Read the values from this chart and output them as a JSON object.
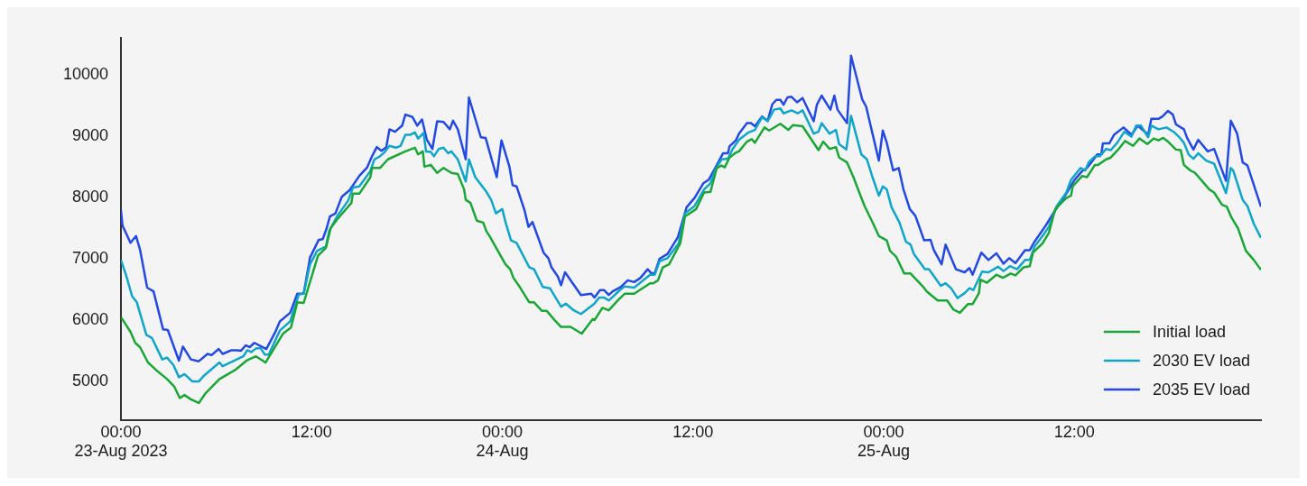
{
  "chart_data": {
    "type": "line",
    "xlim": [
      "2023-08-23T00:00",
      "2023-08-25T23:45"
    ],
    "xticks": [
      {
        "value": "2023-08-23T00:00",
        "label": "00:00\n23-Aug 2023"
      },
      {
        "value": "2023-08-23T12:00",
        "label": "12:00"
      },
      {
        "value": "2023-08-24T00:00",
        "label": "00:00\n24-Aug"
      },
      {
        "value": "2023-08-24T12:00",
        "label": "12:00"
      },
      {
        "value": "2023-08-25T00:00",
        "label": "00:00\n25-Aug"
      },
      {
        "value": "2023-08-25T12:00",
        "label": "12:00"
      }
    ],
    "ylim": [
      4370,
      10600
    ],
    "yticks": [
      5000,
      6000,
      7000,
      8000,
      9000,
      10000
    ],
    "grid": false,
    "legend": "bottom right",
    "marker": "none",
    "series": [
      {
        "name": "Initial load",
        "color": "#1aa637",
        "x": [
          "2023-08-23T00:00",
          "2023-08-23T00:36",
          "2023-08-23T00:54",
          "2023-08-23T01:12",
          "2023-08-23T01:42",
          "2023-08-23T02:12",
          "2023-08-23T02:54",
          "2023-08-23T03:21",
          "2023-08-23T03:42",
          "2023-08-23T04:00",
          "2023-08-23T04:24",
          "2023-08-23T04:54",
          "2023-08-23T05:18",
          "2023-08-23T06:12",
          "2023-08-23T07:12",
          "2023-08-23T07:54",
          "2023-08-23T08:30",
          "2023-08-23T09:06",
          "2023-08-23T10:12",
          "2023-08-23T10:42",
          "2023-08-23T11:06",
          "2023-08-23T11:30",
          "2023-08-23T12:24",
          "2023-08-23T12:54",
          "2023-08-23T13:12",
          "2023-08-23T13:36",
          "2023-08-23T14:30",
          "2023-08-23T14:36",
          "2023-08-23T15:00",
          "2023-08-23T15:42",
          "2023-08-23T15:48",
          "2023-08-23T16:18",
          "2023-08-23T16:48",
          "2023-08-23T17:54",
          "2023-08-23T18:30",
          "2023-08-23T18:42",
          "2023-08-23T19:00",
          "2023-08-23T19:06",
          "2023-08-23T19:30",
          "2023-08-23T19:54",
          "2023-08-23T20:18",
          "2023-08-23T20:48",
          "2023-08-23T21:12",
          "2023-08-23T21:36",
          "2023-08-23T21:42",
          "2023-08-23T22:00",
          "2023-08-23T22:24",
          "2023-08-23T22:48",
          "2023-08-23T23:00",
          "2023-08-23T23:12",
          "2023-08-24T00:12",
          "2023-08-24T00:30",
          "2023-08-24T00:42",
          "2023-08-24T01:06",
          "2023-08-24T01:42",
          "2023-08-24T02:00",
          "2023-08-24T02:30",
          "2023-08-24T02:48",
          "2023-08-24T03:18",
          "2023-08-24T03:42",
          "2023-08-24T04:18",
          "2023-08-24T05:00",
          "2023-08-24T05:42",
          "2023-08-24T05:48",
          "2023-08-24T06:18",
          "2023-08-24T06:42",
          "2023-08-24T07:18",
          "2023-08-24T07:42",
          "2023-08-24T08:18",
          "2023-08-24T09:18",
          "2023-08-24T09:30",
          "2023-08-24T09:48",
          "2023-08-24T10:06",
          "2023-08-24T10:30",
          "2023-08-24T11:12",
          "2023-08-24T11:30",
          "2023-08-24T12:12",
          "2023-08-24T12:42",
          "2023-08-24T13:06",
          "2023-08-24T13:30",
          "2023-08-24T13:48",
          "2023-08-24T14:00",
          "2023-08-24T14:18",
          "2023-08-24T14:42",
          "2023-08-24T14:54",
          "2023-08-24T15:24",
          "2023-08-24T15:42",
          "2023-08-24T15:54",
          "2023-08-24T16:30",
          "2023-08-24T16:48",
          "2023-08-24T17:30",
          "2023-08-24T18:00",
          "2023-08-24T18:18",
          "2023-08-24T18:54",
          "2023-08-24T19:54",
          "2023-08-24T20:12",
          "2023-08-24T20:36",
          "2023-08-24T21:00",
          "2023-08-24T21:12",
          "2023-08-24T21:42",
          "2023-08-24T22:06",
          "2023-08-24T22:48",
          "2023-08-24T23:21",
          "2023-08-24T23:42",
          "2023-08-25T00:12",
          "2023-08-25T00:24",
          "2023-08-25T00:48",
          "2023-08-25T01:18",
          "2023-08-25T01:42",
          "2023-08-25T02:30",
          "2023-08-25T02:42",
          "2023-08-25T03:24",
          "2023-08-25T04:00",
          "2023-08-25T04:24",
          "2023-08-25T04:48",
          "2023-08-25T05:18",
          "2023-08-25T05:36",
          "2023-08-25T06:00",
          "2023-08-25T06:06",
          "2023-08-25T06:30",
          "2023-08-25T07:06",
          "2023-08-25T07:30",
          "2023-08-25T08:00",
          "2023-08-25T08:18",
          "2023-08-25T08:48",
          "2023-08-25T09:12",
          "2023-08-25T09:24",
          "2023-08-25T10:00",
          "2023-08-25T10:24",
          "2023-08-25T10:48",
          "2023-08-25T11:30",
          "2023-08-25T11:48",
          "2023-08-25T11:54",
          "2023-08-25T12:30",
          "2023-08-25T12:48",
          "2023-08-25T13:18",
          "2023-08-25T13:30",
          "2023-08-25T14:00",
          "2023-08-25T14:18",
          "2023-08-25T14:48",
          "2023-08-25T15:12",
          "2023-08-25T15:42",
          "2023-08-25T16:06",
          "2023-08-25T16:36",
          "2023-08-25T17:00",
          "2023-08-25T17:18",
          "2023-08-25T17:36",
          "2023-08-25T17:54",
          "2023-08-25T18:24",
          "2023-08-25T18:42",
          "2023-08-25T18:54",
          "2023-08-25T19:18",
          "2023-08-25T19:36",
          "2023-08-25T20:00",
          "2023-08-25T20:30",
          "2023-08-25T20:48",
          "2023-08-25T21:18",
          "2023-08-25T21:36",
          "2023-08-25T21:54",
          "2023-08-25T22:18",
          "2023-08-25T22:48",
          "2023-08-25T23:18",
          "2023-08-25T23:45"
        ],
        "values": [
          6050,
          5810,
          5630,
          5560,
          5310,
          5190,
          5040,
          4920,
          4730,
          4780,
          4710,
          4650,
          4800,
          5040,
          5190,
          5340,
          5410,
          5310,
          5780,
          5880,
          6290,
          6280,
          7050,
          7180,
          7500,
          7640,
          7910,
          8060,
          8060,
          8330,
          8480,
          8480,
          8620,
          8750,
          8810,
          8700,
          8750,
          8500,
          8530,
          8400,
          8480,
          8400,
          8380,
          8130,
          7960,
          7910,
          7620,
          7590,
          7450,
          7370,
          6910,
          6830,
          6690,
          6540,
          6290,
          6290,
          6150,
          6150,
          6000,
          5890,
          5890,
          5780,
          6020,
          6000,
          6200,
          6160,
          6330,
          6430,
          6430,
          6600,
          6600,
          6650,
          6860,
          6910,
          7250,
          7690,
          7810,
          8080,
          8090,
          8480,
          8520,
          8490,
          8650,
          8730,
          8750,
          8910,
          8950,
          8890,
          9140,
          9090,
          9200,
          9100,
          9180,
          9160,
          8770,
          8910,
          8790,
          8820,
          8650,
          8570,
          8330,
          7860,
          7570,
          7370,
          7300,
          7130,
          7030,
          6760,
          6760,
          6540,
          6470,
          6320,
          6320,
          6170,
          6120,
          6260,
          6260,
          6440,
          6660,
          6610,
          6740,
          6690,
          6760,
          6730,
          6860,
          6880,
          7100,
          7250,
          7420,
          7810,
          7990,
          8030,
          8180,
          8350,
          8330,
          8530,
          8530,
          8620,
          8650,
          8790,
          8920,
          8840,
          8960,
          8870,
          8960,
          8930,
          8970,
          8910,
          8780,
          8770,
          8530,
          8440,
          8400,
          8280,
          8130,
          8080,
          7880,
          7850,
          7670,
          7500,
          7130,
          6980,
          6820
        ]
      },
      {
        "name": "2030 EV load",
        "color": "#0ea5c8",
        "x": [
          "2023-08-23T00:00",
          "2023-08-23T00:21",
          "2023-08-23T00:42",
          "2023-08-23T01:00",
          "2023-08-23T01:36",
          "2023-08-23T01:57",
          "2023-08-23T02:36",
          "2023-08-23T02:54",
          "2023-08-23T03:18",
          "2023-08-23T03:39",
          "2023-08-23T04:00",
          "2023-08-23T04:30",
          "2023-08-23T04:54",
          "2023-08-23T05:12",
          "2023-08-23T06:12",
          "2023-08-23T06:24",
          "2023-08-23T07:42",
          "2023-08-23T07:57",
          "2023-08-23T08:12",
          "2023-08-23T08:30",
          "2023-08-23T08:48",
          "2023-08-23T09:03",
          "2023-08-23T09:18",
          "2023-08-23T10:00",
          "2023-08-23T10:39",
          "2023-08-23T11:12",
          "2023-08-23T11:30",
          "2023-08-23T11:54",
          "2023-08-23T12:21",
          "2023-08-23T12:54",
          "2023-08-23T13:06",
          "2023-08-23T13:36",
          "2023-08-23T14:18",
          "2023-08-23T14:36",
          "2023-08-23T15:00",
          "2023-08-23T15:42",
          "2023-08-23T15:57",
          "2023-08-23T16:18",
          "2023-08-23T16:36",
          "2023-08-23T16:54",
          "2023-08-23T17:18",
          "2023-08-23T17:36",
          "2023-08-23T17:54",
          "2023-08-23T18:12",
          "2023-08-23T18:30",
          "2023-08-23T18:42",
          "2023-08-23T19:03",
          "2023-08-23T19:12",
          "2023-08-23T19:30",
          "2023-08-23T19:42",
          "2023-08-23T20:00",
          "2023-08-23T20:18",
          "2023-08-23T20:36",
          "2023-08-23T20:48",
          "2023-08-23T21:12",
          "2023-08-23T21:42",
          "2023-08-23T21:54",
          "2023-08-23T22:18",
          "2023-08-23T22:57",
          "2023-08-23T23:18",
          "2023-08-23T23:36",
          "2023-08-24T00:00",
          "2023-08-24T00:12",
          "2023-08-24T00:33",
          "2023-08-24T00:54",
          "2023-08-24T01:42",
          "2023-08-24T02:00",
          "2023-08-24T02:33",
          "2023-08-24T03:00",
          "2023-08-24T03:42",
          "2023-08-24T04:00",
          "2023-08-24T04:30",
          "2023-08-24T04:57",
          "2023-08-24T05:48",
          "2023-08-24T06:06",
          "2023-08-24T06:24",
          "2023-08-24T06:42",
          "2023-08-24T07:24",
          "2023-08-24T07:42",
          "2023-08-24T08:18",
          "2023-08-24T09:18",
          "2023-08-24T09:36",
          "2023-08-24T09:54",
          "2023-08-24T10:24",
          "2023-08-24T11:06",
          "2023-08-24T11:30",
          "2023-08-24T12:06",
          "2023-08-24T12:42",
          "2023-08-24T13:06",
          "2023-08-24T13:24",
          "2023-08-24T13:48",
          "2023-08-24T14:12",
          "2023-08-24T14:30",
          "2023-08-24T14:54",
          "2023-08-24T15:30",
          "2023-08-24T15:54",
          "2023-08-24T16:21",
          "2023-08-24T16:42",
          "2023-08-24T17:06",
          "2023-08-24T17:30",
          "2023-08-24T17:42",
          "2023-08-24T18:12",
          "2023-08-24T18:36",
          "2023-08-24T18:54",
          "2023-08-24T19:36",
          "2023-08-24T19:54",
          "2023-08-24T20:06",
          "2023-08-24T20:36",
          "2023-08-24T21:00",
          "2023-08-24T21:12",
          "2023-08-24T21:39",
          "2023-08-24T21:57",
          "2023-08-24T22:36",
          "2023-08-24T22:57",
          "2023-08-24T23:18",
          "2023-08-24T23:42",
          "2023-08-24T23:57",
          "2023-08-25T00:12",
          "2023-08-25T00:30",
          "2023-08-25T01:00",
          "2023-08-25T01:24",
          "2023-08-25T01:42",
          "2023-08-25T01:54",
          "2023-08-25T02:36",
          "2023-08-25T02:51",
          "2023-08-25T03:36",
          "2023-08-25T03:54",
          "2023-08-25T04:15",
          "2023-08-25T04:39",
          "2023-08-25T05:06",
          "2023-08-25T05:24",
          "2023-08-25T05:39",
          "2023-08-25T06:12",
          "2023-08-25T06:36",
          "2023-08-25T07:12",
          "2023-08-25T07:33",
          "2023-08-25T07:57",
          "2023-08-25T08:24",
          "2023-08-25T08:54",
          "2023-08-25T09:12",
          "2023-08-25T09:30",
          "2023-08-25T10:00",
          "2023-08-25T10:24",
          "2023-08-25T10:54",
          "2023-08-25T11:30",
          "2023-08-25T11:48",
          "2023-08-25T12:24",
          "2023-08-25T12:42",
          "2023-08-25T12:54",
          "2023-08-25T13:18",
          "2023-08-25T13:36",
          "2023-08-25T14:00",
          "2023-08-25T14:18",
          "2023-08-25T14:42",
          "2023-08-25T15:09",
          "2023-08-25T15:36",
          "2023-08-25T15:54",
          "2023-08-25T16:12",
          "2023-08-25T16:39",
          "2023-08-25T16:51",
          "2023-08-25T17:18",
          "2023-08-25T17:48",
          "2023-08-25T18:18",
          "2023-08-25T18:39",
          "2023-08-25T18:54",
          "2023-08-25T19:12",
          "2023-08-25T19:30",
          "2023-08-25T19:48",
          "2023-08-25T20:18",
          "2023-08-25T20:48",
          "2023-08-25T21:33",
          "2023-08-25T21:51",
          "2023-08-25T22:00",
          "2023-08-25T22:36",
          "2023-08-25T22:54",
          "2023-08-25T23:18",
          "2023-08-25T23:45"
        ],
        "values": [
          6980,
          6710,
          6390,
          6290,
          5760,
          5710,
          5360,
          5390,
          5270,
          5070,
          5120,
          5000,
          5000,
          5090,
          5310,
          5250,
          5410,
          5510,
          5480,
          5540,
          5540,
          5440,
          5440,
          5830,
          5980,
          6420,
          6430,
          6910,
          7130,
          7200,
          7450,
          7690,
          7950,
          8160,
          8180,
          8430,
          8620,
          8670,
          8740,
          8840,
          8810,
          8840,
          9020,
          9020,
          9060,
          8960,
          9050,
          8750,
          8740,
          8670,
          8790,
          8810,
          8720,
          8750,
          8620,
          8260,
          8620,
          8330,
          8110,
          7960,
          7740,
          7810,
          7600,
          7300,
          7260,
          6860,
          6830,
          6540,
          6520,
          6220,
          6270,
          6160,
          6100,
          6270,
          6370,
          6370,
          6320,
          6490,
          6550,
          6530,
          6740,
          6740,
          6960,
          7010,
          7250,
          7740,
          7860,
          8130,
          8230,
          8450,
          8620,
          8630,
          8790,
          8940,
          9060,
          9100,
          9310,
          9240,
          9430,
          9450,
          9370,
          9420,
          9370,
          9420,
          9040,
          9070,
          9210,
          9040,
          9100,
          8870,
          8780,
          9330,
          8700,
          8620,
          8330,
          8030,
          8180,
          8130,
          7840,
          7590,
          7280,
          7230,
          7080,
          6830,
          6830,
          6560,
          6600,
          6520,
          6360,
          6440,
          6520,
          6490,
          6790,
          6780,
          6870,
          6800,
          6880,
          6830,
          6980,
          6980,
          7200,
          7370,
          7520,
          7860,
          8080,
          8290,
          8480,
          8440,
          8570,
          8670,
          8670,
          8790,
          8770,
          8890,
          9070,
          8990,
          9170,
          9170,
          8980,
          9170,
          9110,
          9140,
          9060,
          8970,
          8890,
          8700,
          8630,
          8720,
          8600,
          8550,
          8070,
          8480,
          8440,
          7960,
          7860,
          7570,
          7340
        ]
      },
      {
        "name": "2035 EV load",
        "color": "#2449e0",
        "x": [
          "2023-08-23T00:00",
          "2023-08-23T00:06",
          "2023-08-23T00:36",
          "2023-08-23T00:57",
          "2023-08-23T01:12",
          "2023-08-23T01:39",
          "2023-08-23T02:03",
          "2023-08-23T02:39",
          "2023-08-23T02:57",
          "2023-08-23T03:39",
          "2023-08-23T03:54",
          "2023-08-23T04:24",
          "2023-08-23T04:54",
          "2023-08-23T05:27",
          "2023-08-23T05:42",
          "2023-08-23T06:09",
          "2023-08-23T06:24",
          "2023-08-23T06:57",
          "2023-08-23T07:18",
          "2023-08-23T07:33",
          "2023-08-23T07:51",
          "2023-08-23T08:06",
          "2023-08-23T08:24",
          "2023-08-23T09:09",
          "2023-08-23T09:42",
          "2023-08-23T10:00",
          "2023-08-23T10:39",
          "2023-08-23T11:06",
          "2023-08-23T11:30",
          "2023-08-23T11:54",
          "2023-08-23T12:27",
          "2023-08-23T12:42",
          "2023-08-23T12:57",
          "2023-08-23T13:09",
          "2023-08-23T13:30",
          "2023-08-23T13:54",
          "2023-08-23T14:24",
          "2023-08-23T15:00",
          "2023-08-23T15:30",
          "2023-08-23T15:48",
          "2023-08-23T16:06",
          "2023-08-23T16:24",
          "2023-08-23T16:42",
          "2023-08-23T16:54",
          "2023-08-23T17:15",
          "2023-08-23T17:42",
          "2023-08-23T17:54",
          "2023-08-23T18:21",
          "2023-08-23T18:39",
          "2023-08-23T18:57",
          "2023-08-23T19:15",
          "2023-08-23T19:36",
          "2023-08-23T19:54",
          "2023-08-23T20:18",
          "2023-08-23T20:42",
          "2023-08-23T20:54",
          "2023-08-23T21:12",
          "2023-08-23T21:42",
          "2023-08-23T21:54",
          "2023-08-23T22:39",
          "2023-08-23T22:57",
          "2023-08-23T23:39",
          "2023-08-23T23:57",
          "2023-08-24T00:27",
          "2023-08-24T00:39",
          "2023-08-24T00:54",
          "2023-08-24T01:24",
          "2023-08-24T01:39",
          "2023-08-24T01:54",
          "2023-08-24T02:36",
          "2023-08-24T02:54",
          "2023-08-24T03:06",
          "2023-08-24T03:30",
          "2023-08-24T03:42",
          "2023-08-24T03:57",
          "2023-08-24T04:57",
          "2023-08-24T05:36",
          "2023-08-24T05:48",
          "2023-08-24T06:09",
          "2023-08-24T06:24",
          "2023-08-24T06:42",
          "2023-08-24T06:57",
          "2023-08-24T07:27",
          "2023-08-24T07:54",
          "2023-08-24T08:18",
          "2023-08-24T08:42",
          "2023-08-24T09:09",
          "2023-08-24T09:24",
          "2023-08-24T09:36",
          "2023-08-24T09:54",
          "2023-08-24T10:24",
          "2023-08-24T11:03",
          "2023-08-24T11:36",
          "2023-08-24T12:06",
          "2023-08-24T12:39",
          "2023-08-24T13:00",
          "2023-08-24T13:24",
          "2023-08-24T13:54",
          "2023-08-24T14:12",
          "2023-08-24T14:18",
          "2023-08-24T14:42",
          "2023-08-24T14:54",
          "2023-08-24T15:24",
          "2023-08-24T15:39",
          "2023-08-24T15:54",
          "2023-08-24T16:21",
          "2023-08-24T16:42",
          "2023-08-24T17:00",
          "2023-08-24T17:15",
          "2023-08-24T17:30",
          "2023-08-24T17:42",
          "2023-08-24T17:57",
          "2023-08-24T18:12",
          "2023-08-24T18:33",
          "2023-08-24T18:54",
          "2023-08-24T19:36",
          "2023-08-24T19:48",
          "2023-08-24T20:06",
          "2023-08-24T20:39",
          "2023-08-24T20:54",
          "2023-08-24T21:06",
          "2023-08-24T21:42",
          "2023-08-24T21:57",
          "2023-08-24T22:39",
          "2023-08-24T22:54",
          "2023-08-24T23:42",
          "2023-08-24T23:57",
          "2023-08-25T00:12",
          "2023-08-25T00:36",
          "2023-08-25T00:57",
          "2023-08-25T01:15",
          "2023-08-25T01:39",
          "2023-08-25T02:00",
          "2023-08-25T02:33",
          "2023-08-25T02:57",
          "2023-08-25T03:09",
          "2023-08-25T03:39",
          "2023-08-25T03:54",
          "2023-08-25T04:33",
          "2023-08-25T05:06",
          "2023-08-25T05:24",
          "2023-08-25T05:36",
          "2023-08-25T06:09",
          "2023-08-25T06:36",
          "2023-08-25T07:06",
          "2023-08-25T07:33",
          "2023-08-25T07:54",
          "2023-08-25T08:18",
          "2023-08-25T08:54",
          "2023-08-25T09:12",
          "2023-08-25T09:30",
          "2023-08-25T10:12",
          "2023-08-25T10:48",
          "2023-08-25T11:30",
          "2023-08-25T12:00",
          "2023-08-25T12:30",
          "2023-08-25T12:48",
          "2023-08-25T13:06",
          "2023-08-25T13:27",
          "2023-08-25T13:42",
          "2023-08-25T13:48",
          "2023-08-25T14:12",
          "2023-08-25T14:30",
          "2023-08-25T15:06",
          "2023-08-25T15:36",
          "2023-08-25T16:00",
          "2023-08-25T16:39",
          "2023-08-25T16:51",
          "2023-08-25T17:18",
          "2023-08-25T17:33",
          "2023-08-25T17:54",
          "2023-08-25T18:12",
          "2023-08-25T18:24",
          "2023-08-25T18:54",
          "2023-08-25T19:06",
          "2023-08-25T19:30",
          "2023-08-25T19:48",
          "2023-08-25T20:24",
          "2023-08-25T20:48",
          "2023-08-25T21:33",
          "2023-08-25T21:51",
          "2023-08-25T22:15",
          "2023-08-25T22:36",
          "2023-08-25T22:54",
          "2023-08-25T23:45"
        ],
        "values": [
          7790,
          7540,
          7260,
          7370,
          7150,
          6530,
          6470,
          5850,
          5840,
          5340,
          5570,
          5360,
          5330,
          5450,
          5430,
          5530,
          5450,
          5510,
          5510,
          5500,
          5590,
          5560,
          5630,
          5530,
          5800,
          5980,
          6120,
          6430,
          6430,
          7020,
          7310,
          7320,
          7500,
          7690,
          7740,
          8010,
          8120,
          8350,
          8490,
          8670,
          8820,
          8760,
          8820,
          9110,
          9070,
          9170,
          9350,
          9310,
          9170,
          9270,
          8940,
          8790,
          9240,
          9230,
          9110,
          9250,
          9110,
          8620,
          9630,
          8980,
          8970,
          8330,
          8930,
          8500,
          8200,
          8180,
          7790,
          7520,
          7600,
          7100,
          7010,
          6860,
          6710,
          6570,
          6780,
          6410,
          6430,
          6370,
          6490,
          6490,
          6410,
          6470,
          6540,
          6650,
          6620,
          6690,
          6830,
          6760,
          6770,
          7000,
          7080,
          7350,
          7840,
          7990,
          8230,
          8290,
          8480,
          8720,
          8720,
          8830,
          8930,
          9040,
          9210,
          9210,
          9160,
          9320,
          9250,
          9520,
          9590,
          9590,
          9510,
          9630,
          9640,
          9550,
          9620,
          9240,
          9510,
          9660,
          9430,
          9660,
          9430,
          9210,
          10310,
          9600,
          9480,
          8600,
          9090,
          8890,
          8440,
          8480,
          8130,
          7810,
          7700,
          7300,
          7310,
          7150,
          6910,
          7230,
          6830,
          6780,
          6850,
          6740,
          7100,
          6980,
          7090,
          6920,
          7010,
          6930,
          7140,
          7140,
          7280,
          7540,
          7790,
          8060,
          8280,
          8430,
          8480,
          8580,
          8700,
          8700,
          8880,
          8880,
          9020,
          9140,
          9020,
          9170,
          9020,
          9280,
          9280,
          9320,
          9410,
          9350,
          9190,
          9110,
          8970,
          8780,
          8940,
          8750,
          8790,
          8270,
          9250,
          9040,
          8570,
          8520,
          7850
        ]
      }
    ]
  }
}
